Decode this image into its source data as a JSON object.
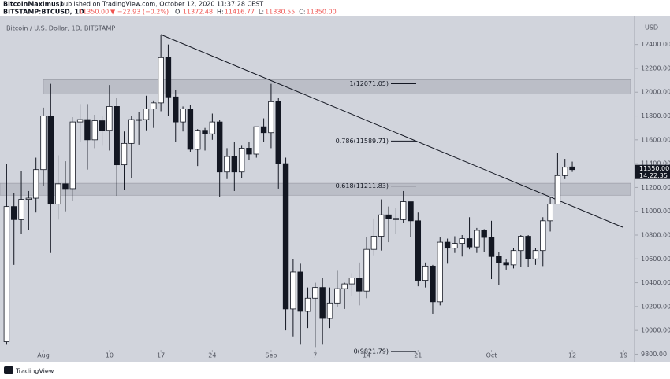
{
  "header": {
    "author": "BitcoinMaximus1",
    "published": "published on TradingView.com, October 12, 2020 11:37:28 CEST",
    "symbol": "BITSTAMP:BTCUSD, 1D",
    "price": "11350.00",
    "change": "▼ −22.93 (−0.2%)",
    "ohlc": [
      {
        "key": "O:",
        "value": "11372.48"
      },
      {
        "key": "H:",
        "value": "11416.77"
      },
      {
        "key": "L:",
        "value": "11330.55"
      },
      {
        "key": "C:",
        "value": "11350.00"
      }
    ]
  },
  "footer": {
    "brand": "TradingView"
  },
  "chart_data": {
    "type": "candlestick",
    "title": "Bitcoin / U.S. Dollar, 1D, BITSTAMP",
    "y_unit": "USD",
    "categories": [
      null,
      null,
      null,
      null,
      null,
      "Aug",
      null,
      null,
      null,
      null,
      null,
      null,
      null,
      null,
      "10",
      null,
      null,
      null,
      null,
      null,
      null,
      "17",
      null,
      null,
      null,
      null,
      null,
      null,
      "24",
      null,
      null,
      null,
      null,
      null,
      null,
      null,
      "Sep",
      null,
      null,
      null,
      null,
      null,
      "7",
      null,
      null,
      null,
      null,
      null,
      null,
      "14",
      null,
      null,
      null,
      null,
      null,
      null,
      "21",
      null,
      null,
      null,
      null,
      null,
      null,
      null,
      null,
      null,
      "Oct",
      null,
      null,
      null,
      null,
      null,
      null,
      null,
      null,
      null,
      null,
      "12",
      null,
      null,
      null,
      null,
      null,
      null,
      "19"
    ],
    "open": [
      9905,
      11040,
      10930,
      11100,
      11110,
      11350,
      11800,
      11060,
      11230,
      11190,
      11750,
      11770,
      11600,
      11760,
      11680,
      11880,
      11390,
      11570,
      11770,
      11770,
      11860,
      11910,
      12290,
      11960,
      11750,
      11860,
      11520,
      11680,
      11650,
      11750,
      11330,
      11460,
      11330,
      11530,
      11480,
      11710,
      11660,
      11920,
      11400,
      10180,
      10490,
      10160,
      10270,
      10360,
      10100,
      10230,
      10350,
      10390,
      10440,
      10330,
      10680,
      10790,
      10970,
      10940,
      10930,
      11080,
      10920,
      10420,
      10540,
      10240,
      10740,
      10690,
      10730,
      10770,
      10700,
      10840,
      10780,
      10620,
      10570,
      10550,
      10670,
      10790,
      10600,
      10670,
      10920,
      11060,
      11300,
      11372.48,
      null,
      null,
      null,
      null,
      null,
      null,
      null
    ],
    "high": [
      11400,
      11150,
      11340,
      11170,
      11450,
      11870,
      12070,
      11470,
      11420,
      11790,
      11900,
      11900,
      11810,
      11800,
      12060,
      11950,
      11670,
      11800,
      11830,
      11970,
      11930,
      12480,
      12400,
      12020,
      11880,
      11890,
      11690,
      11700,
      11820,
      11770,
      11530,
      11580,
      11550,
      11580,
      11700,
      11780,
      12070,
      11950,
      11450,
      10600,
      10560,
      10360,
      10400,
      10440,
      10360,
      10500,
      10400,
      10480,
      10570,
      10780,
      10940,
      11100,
      11040,
      11030,
      11170,
      11080,
      10990,
      10570,
      10550,
      10780,
      10770,
      10790,
      10800,
      10950,
      10860,
      10850,
      10920,
      10660,
      10600,
      10690,
      10800,
      10800,
      10690,
      10950,
      11120,
      11490,
      11440,
      11416.77,
      null,
      null,
      null,
      null,
      null,
      null,
      null
    ],
    "low": [
      9880,
      10550,
      10810,
      10840,
      10990,
      11210,
      10650,
      10930,
      11000,
      11090,
      11580,
      11350,
      11530,
      11550,
      11510,
      11130,
      11180,
      11280,
      11560,
      11680,
      11700,
      11840,
      11800,
      11580,
      11670,
      11500,
      11380,
      11510,
      11600,
      11120,
      11270,
      11170,
      11280,
      11430,
      11450,
      11580,
      11530,
      11190,
      10000,
      9950,
      9880,
      10020,
      9860,
      9880,
      10020,
      10200,
      10180,
      10290,
      10210,
      10270,
      10630,
      10670,
      10740,
      10810,
      10900,
      10780,
      10370,
      10360,
      10140,
      10210,
      10560,
      10650,
      10620,
      10680,
      10650,
      10660,
      10430,
      10380,
      10510,
      10520,
      10530,
      10530,
      10550,
      10540,
      10830,
      11060,
      11270,
      11330.55,
      null,
      null,
      null,
      null,
      null,
      null,
      null
    ],
    "close": [
      11040,
      10930,
      11100,
      11110,
      11350,
      11800,
      11060,
      11230,
      11190,
      11750,
      11770,
      11600,
      11760,
      11680,
      11880,
      11390,
      11570,
      11770,
      11770,
      11860,
      11910,
      12290,
      11960,
      11750,
      11860,
      11520,
      11680,
      11650,
      11750,
      11330,
      11460,
      11330,
      11530,
      11480,
      11710,
      11660,
      11920,
      11400,
      10180,
      10490,
      10160,
      10270,
      10360,
      10100,
      10230,
      10350,
      10390,
      10440,
      10330,
      10680,
      10790,
      10970,
      10940,
      10930,
      11080,
      10920,
      10420,
      10540,
      10240,
      10740,
      10690,
      10730,
      10770,
      10700,
      10840,
      10780,
      10620,
      10570,
      10550,
      10670,
      10790,
      10600,
      10670,
      10920,
      11060,
      11300,
      11370,
      11350,
      null,
      null,
      null,
      null,
      null,
      null,
      null
    ],
    "ylim": [
      9737,
      12642
    ],
    "yticks": [
      {
        "value": 12400,
        "label": "12400.00"
      },
      {
        "value": 12200,
        "label": "12200.00"
      },
      {
        "value": 12000,
        "label": "12000.00"
      },
      {
        "value": 11800,
        "label": "11800.00"
      },
      {
        "value": 11600,
        "label": "11600.00"
      },
      {
        "value": 11400,
        "label": "11400.00"
      },
      {
        "value": 11200,
        "label": "11200.00"
      },
      {
        "value": 11000,
        "label": "11000.00"
      },
      {
        "value": 10800,
        "label": "10800.00"
      },
      {
        "value": 10600,
        "label": "10600.00"
      },
      {
        "value": 10400,
        "label": "10400.00"
      },
      {
        "value": 10200,
        "label": "10200.00"
      },
      {
        "value": 10000,
        "label": "10000.00"
      },
      {
        "value": 9800,
        "label": "9800.00"
      }
    ],
    "fib_levels": [
      {
        "value": 12071.05,
        "label": "1(12071.05)"
      },
      {
        "value": 11589.71,
        "label": "0.786(11589.71)"
      },
      {
        "value": 11211.83,
        "label": "0.618(11211.83)"
      },
      {
        "value": 9821.79,
        "label": "0(9821.79)"
      }
    ],
    "zones": [
      {
        "low": 11985,
        "high": 12105
      },
      {
        "low": 11135,
        "high": 11235
      }
    ],
    "last_price": {
      "value": 11350,
      "label": "11350.00",
      "countdown": "14:22:35"
    },
    "up_color": "#ffffff",
    "down_color": "#131722",
    "background": "#d1d4dc"
  }
}
